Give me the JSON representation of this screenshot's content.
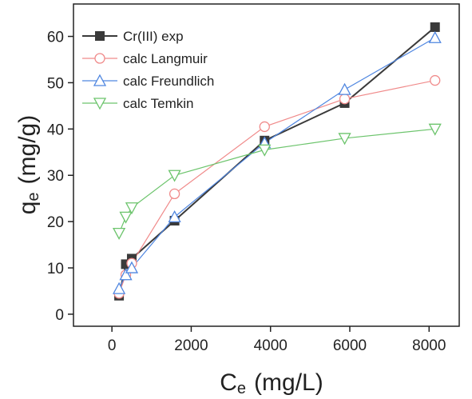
{
  "chart_data": {
    "type": "line",
    "x": [
      180,
      350,
      500,
      1580,
      3850,
      5870,
      8150
    ],
    "series": [
      {
        "name": "Cr(III) exp",
        "color": "#3a3a3a",
        "marker": "square",
        "values": [
          4,
          10.8,
          12,
          20.2,
          37.5,
          45.6,
          62
        ]
      },
      {
        "name": "calc Langmuir",
        "color": "#f08a8a",
        "marker": "circle",
        "values": [
          4.5,
          8.5,
          11,
          26,
          40.5,
          46.5,
          50.5
        ]
      },
      {
        "name": "calc Freundlich",
        "color": "#4f86e0",
        "marker": "triangle-up",
        "values": [
          5.5,
          8.5,
          10,
          21,
          37,
          48.5,
          59.7
        ]
      },
      {
        "name": "calc Temkin",
        "color": "#6cc46c",
        "marker": "triangle-down",
        "values": [
          17.5,
          21,
          23,
          30,
          35.5,
          38,
          40
        ]
      }
    ],
    "xlabel": "C",
    "xlabel_sub": "e",
    "xlabel_unit": "(mg/L)",
    "ylabel": "q",
    "ylabel_sub": "e",
    "ylabel_unit": "(mg/g)",
    "xlim": [
      -970,
      8760
    ],
    "xticks": [
      0,
      2000,
      4000,
      6000,
      8000
    ],
    "ylim": [
      -2.6,
      67
    ],
    "yticks": [
      0,
      10,
      20,
      30,
      40,
      50,
      60
    ],
    "legend": "upper-left"
  }
}
